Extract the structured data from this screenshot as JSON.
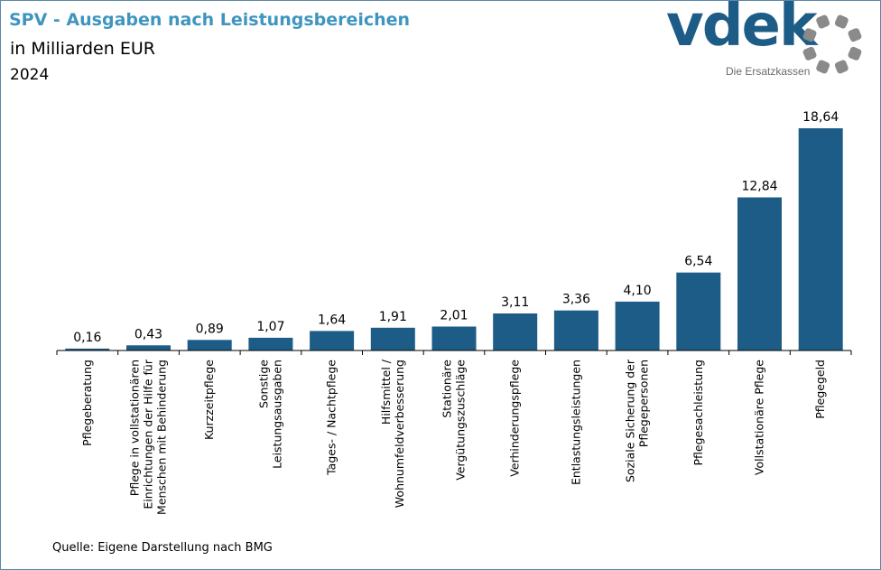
{
  "header": {
    "title": "SPV - Ausgaben nach Leistungsbereichen",
    "subtitle": "in Milliarden EUR",
    "year": "2024"
  },
  "logo": {
    "text": "vdek",
    "tagline": "Die Ersatzkassen",
    "color": "#1d5c86",
    "ring_color": "#8a8a8a"
  },
  "chart_data": {
    "type": "bar",
    "categories": [
      "Pflegeberatung",
      "Pflege in vollstationären Einrichtungen der Hilfe für Menschen mit Behinderung",
      "Kurzzeitpflege",
      "Sonstige Leistungsausgaben",
      "Tages- / Nachtpflege",
      "Hilfsmittel / Wohnumfeldverbesserung",
      "Stationäre Vergütungszuschläge",
      "Verhinderungspflege",
      "Entlastungsleistungen",
      "Soziale Sicherung der Pflegepersonen",
      "Pflegesachleistung",
      "Vollstationäre Pflege",
      "Pflegegeld"
    ],
    "category_lines": [
      [
        "Pflegeberatung"
      ],
      [
        "Pflege in vollstationären",
        "Einrichtungen der Hilfe für",
        "Menschen mit Behinderung"
      ],
      [
        "Kurzzeitpflege"
      ],
      [
        "Sonstige",
        "Leistungsausgaben"
      ],
      [
        "Tages- / Nachtpflege"
      ],
      [
        "Hilfsmittel /",
        "Wohnumfeldverbesserung"
      ],
      [
        "Stationäre",
        "Vergütungszuschläge"
      ],
      [
        "Verhinderungspflege"
      ],
      [
        "Entlastungsleistungen"
      ],
      [
        "Soziale Sicherung der",
        "Pflegepersonen"
      ],
      [
        "Pflegesachleistung"
      ],
      [
        "Vollstationäre Pflege"
      ],
      [
        "Pflegegeld"
      ]
    ],
    "values": [
      0.16,
      0.43,
      0.89,
      1.07,
      1.64,
      1.91,
      2.01,
      3.11,
      3.36,
      4.1,
      6.54,
      12.84,
      18.64
    ],
    "value_labels": [
      "0,16",
      "0,43",
      "0,89",
      "1,07",
      "1,64",
      "1,91",
      "2,01",
      "3,11",
      "3,36",
      "4,10",
      "6,54",
      "12,84",
      "18,64"
    ],
    "ylim": [
      0,
      18.64
    ],
    "bar_color": "#1d5c86",
    "grid": false
  },
  "footer": {
    "source": "Quelle: Eigene Darstellung nach BMG"
  }
}
